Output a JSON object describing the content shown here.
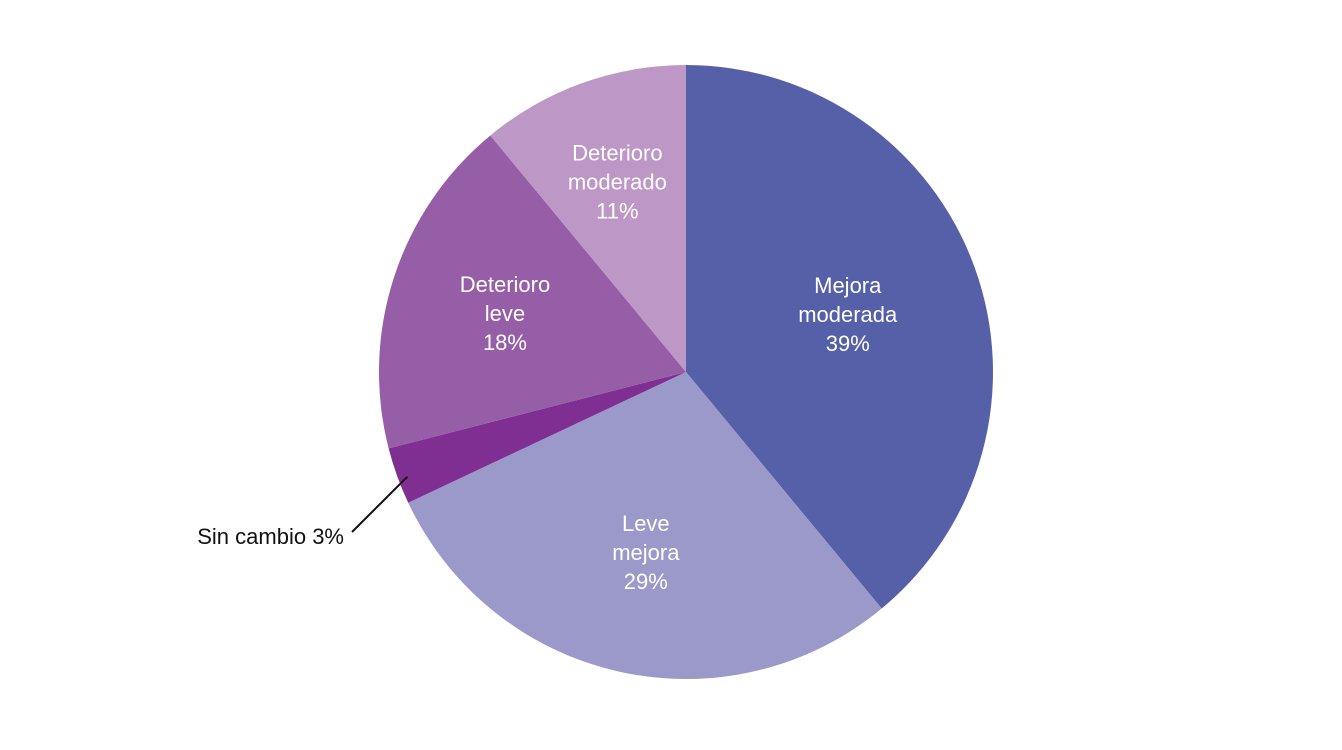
{
  "chart_data": {
    "type": "pie",
    "title": "",
    "start": "12 o'clock",
    "direction": "clockwise",
    "slices": [
      {
        "name": "Mejora moderada",
        "lines": [
          "Mejora",
          "moderada"
        ],
        "value": 39,
        "value_label": "39%",
        "color": "#5660a8",
        "label_position": "inside"
      },
      {
        "name": "Leve mejora",
        "lines": [
          "Leve",
          "mejora"
        ],
        "value": 29,
        "value_label": "29%",
        "color": "#9a99c9",
        "label_position": "inside"
      },
      {
        "name": "Sin cambio",
        "lines": [
          "Sin cambio 3%"
        ],
        "value": 3,
        "value_label": "",
        "color": "#7e2f91",
        "label_position": "outside-left"
      },
      {
        "name": "Deterioro leve",
        "lines": [
          "Deterioro",
          "leve"
        ],
        "value": 18,
        "value_label": "18%",
        "color": "#965ea6",
        "label_position": "inside"
      },
      {
        "name": "Deterioro moderado",
        "lines": [
          "Deterioro",
          "moderado"
        ],
        "value": 11,
        "value_label": "11%",
        "color": "#bd97c6",
        "label_position": "inside"
      }
    ]
  }
}
